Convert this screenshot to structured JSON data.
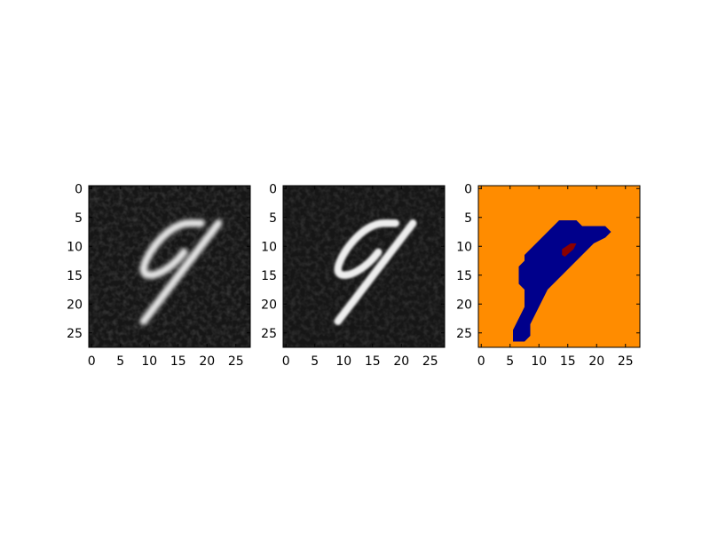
{
  "chart_data": [
    {
      "type": "image",
      "cmap": "gray",
      "xlim": [
        -0.5,
        27.5
      ],
      "ylim": [
        27.5,
        -0.5
      ],
      "xticks": [
        0,
        5,
        10,
        15,
        20,
        25
      ],
      "yticks": [
        0,
        5,
        10,
        15,
        20,
        25
      ]
    },
    {
      "type": "image",
      "cmap": "gray",
      "xlim": [
        -0.5,
        27.5
      ],
      "ylim": [
        27.5,
        -0.5
      ],
      "xticks": [
        0,
        5,
        10,
        15,
        20,
        25
      ],
      "yticks": [
        0,
        5,
        10,
        15,
        20,
        25
      ]
    },
    {
      "type": "image",
      "cmap": "jet",
      "xlim": [
        -0.5,
        27.5
      ],
      "ylim": [
        27.5,
        -0.5
      ],
      "xticks": [
        0,
        5,
        10,
        15,
        20,
        25
      ],
      "yticks": [
        0,
        5,
        10,
        15,
        20,
        25
      ]
    }
  ]
}
